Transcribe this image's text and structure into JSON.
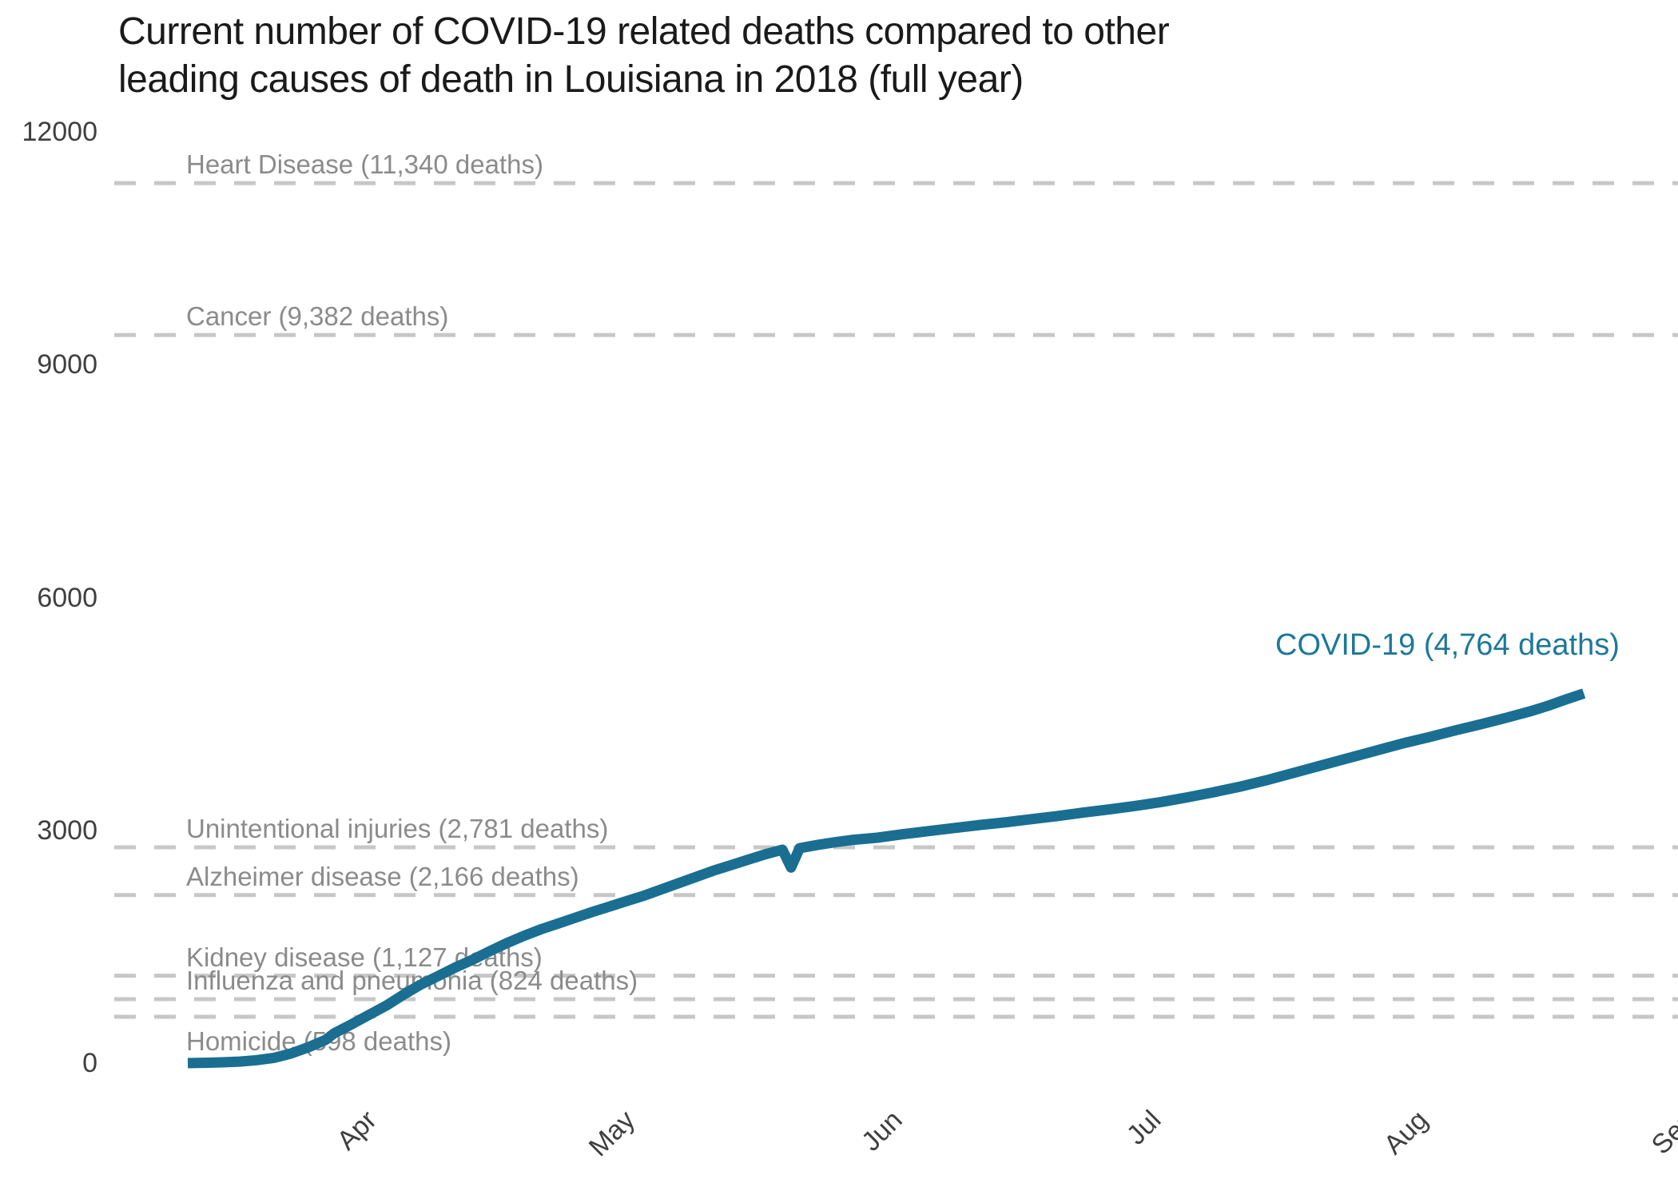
{
  "title": "Current number of COVID-19 related deaths compared to other\nleading causes of death in Louisiana in 2018 (full year)",
  "colors": {
    "covid_line": "#1a6e91",
    "covid_label": "#1d7899",
    "reference_line": "#c7c7c7",
    "reference_label": "#8b8b8b",
    "axis_text": "#3f3f3f",
    "title_text": "#1a1a1a"
  },
  "chart_data": {
    "type": "line",
    "title": "Current number of COVID-19 related deaths compared to other leading causes of death in Louisiana in 2018 (full year)",
    "y_axis": {
      "ticks": [
        0,
        3000,
        6000,
        9000,
        12000
      ],
      "range": [
        0,
        12350
      ],
      "grid": false
    },
    "x_axis": {
      "months": [
        "Apr",
        "May",
        "Jun",
        "Jul",
        "Aug",
        "Sep"
      ],
      "start": "mid-March",
      "end": "late August"
    },
    "legend_position": "inline-annotations",
    "reference_lines": [
      {
        "label": "Heart Disease (11,340 deaths)",
        "value": 11340
      },
      {
        "label": "Cancer (9,382 deaths)",
        "value": 9382
      },
      {
        "label": "Unintentional injuries (2,781 deaths)",
        "value": 2781
      },
      {
        "label": "Alzheimer disease (2,166 deaths)",
        "value": 2166
      },
      {
        "label": "Kidney disease (1,127 deaths)",
        "value": 1127
      },
      {
        "label": "Influenza and pneumonia (824 deaths)",
        "value": 824
      },
      {
        "label": "Homicide (598 deaths)",
        "value": 598
      }
    ],
    "series": [
      {
        "name": "COVID-19",
        "label": "COVID-19 (4,764 deaths)",
        "final_value": 4764,
        "points": [
          [
            0,
            0
          ],
          [
            2,
            4
          ],
          [
            4,
            10
          ],
          [
            6,
            20
          ],
          [
            8,
            38
          ],
          [
            10,
            68
          ],
          [
            12,
            125
          ],
          [
            14,
            205
          ],
          [
            16,
            300
          ],
          [
            17,
            385
          ],
          [
            19,
            500
          ],
          [
            21,
            620
          ],
          [
            23,
            740
          ],
          [
            25,
            880
          ],
          [
            27,
            1010
          ],
          [
            29,
            1120
          ],
          [
            31,
            1230
          ],
          [
            33,
            1330
          ],
          [
            35,
            1440
          ],
          [
            37,
            1545
          ],
          [
            39,
            1640
          ],
          [
            41,
            1725
          ],
          [
            43,
            1800
          ],
          [
            45,
            1875
          ],
          [
            47,
            1950
          ],
          [
            49,
            2020
          ],
          [
            51,
            2090
          ],
          [
            53,
            2160
          ],
          [
            55,
            2240
          ],
          [
            57,
            2320
          ],
          [
            59,
            2400
          ],
          [
            61,
            2480
          ],
          [
            63,
            2550
          ],
          [
            65,
            2620
          ],
          [
            67,
            2690
          ],
          [
            69,
            2750
          ],
          [
            70,
            2520
          ],
          [
            71,
            2770
          ],
          [
            73,
            2810
          ],
          [
            75,
            2845
          ],
          [
            77,
            2875
          ],
          [
            80,
            2905
          ],
          [
            83,
            2950
          ],
          [
            86,
            2990
          ],
          [
            89,
            3030
          ],
          [
            92,
            3070
          ],
          [
            95,
            3105
          ],
          [
            98,
            3145
          ],
          [
            101,
            3185
          ],
          [
            104,
            3230
          ],
          [
            107,
            3270
          ],
          [
            110,
            3315
          ],
          [
            113,
            3365
          ],
          [
            116,
            3425
          ],
          [
            119,
            3490
          ],
          [
            122,
            3560
          ],
          [
            125,
            3640
          ],
          [
            128,
            3730
          ],
          [
            131,
            3820
          ],
          [
            134,
            3910
          ],
          [
            137,
            4000
          ],
          [
            139,
            4060
          ],
          [
            141,
            4120
          ],
          [
            144,
            4200
          ],
          [
            147,
            4285
          ],
          [
            150,
            4365
          ],
          [
            153,
            4450
          ],
          [
            156,
            4540
          ],
          [
            158,
            4610
          ],
          [
            160,
            4690
          ],
          [
            162,
            4764
          ]
        ]
      }
    ]
  }
}
